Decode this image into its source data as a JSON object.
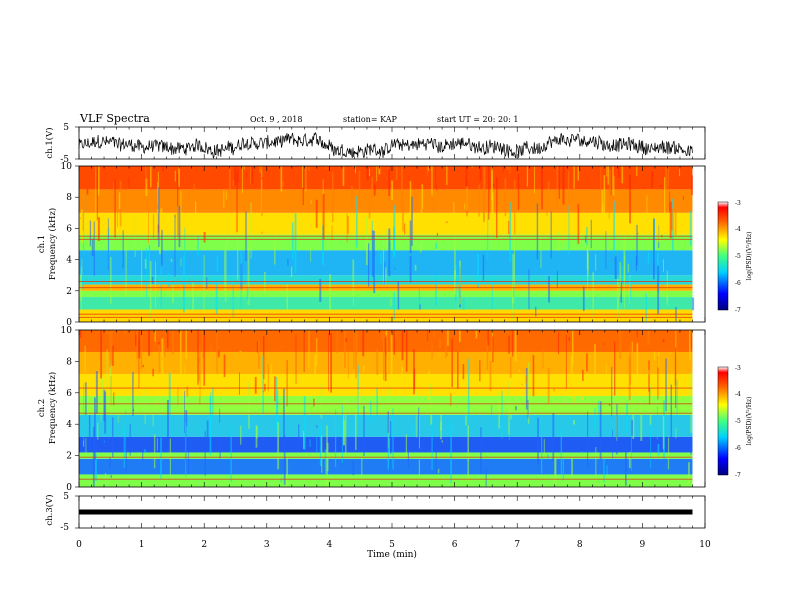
{
  "header": {
    "title": "VLF Spectra",
    "date": "Oct. 9 , 2018",
    "station": "station= KAP",
    "start_ut": "start UT =  20: 20: 1"
  },
  "chart_data": [
    {
      "id": "ch1-waveform",
      "type": "line",
      "ylabel": "ch.1(V)",
      "ylim": [
        -5,
        5
      ],
      "yticks": [
        "5",
        "-5"
      ],
      "xlim": [
        0,
        10
      ],
      "color": "#000000",
      "x_range": [
        0,
        9.8
      ],
      "level": -1
    },
    {
      "id": "ch1-spectrogram",
      "type": "heatmap",
      "ylabel": "ch.1 Frequency (kHz)",
      "ylabel_line1": "ch.1",
      "ylabel_line2": "Frequency  (kHz)",
      "ylim": [
        0,
        10
      ],
      "yticks": [
        "0",
        "2",
        "4",
        "6",
        "8",
        "10"
      ],
      "xlim": [
        0,
        10
      ],
      "x_range": [
        0,
        9.8
      ],
      "bands": [
        {
          "from": 0,
          "to": 0.8,
          "color": "#ffd800"
        },
        {
          "from": 0.8,
          "to": 1.6,
          "color": "#3fe9a8"
        },
        {
          "from": 1.6,
          "to": 2.0,
          "color": "#7fff4a"
        },
        {
          "from": 2.0,
          "to": 2.4,
          "color": "#ffb000"
        },
        {
          "from": 2.4,
          "to": 3.0,
          "color": "#28d8d8"
        },
        {
          "from": 3.0,
          "to": 4.6,
          "color": "#1fb4f4"
        },
        {
          "from": 4.6,
          "to": 5.6,
          "color": "#7fff4a"
        },
        {
          "from": 5.6,
          "to": 7.0,
          "color": "#ffe000"
        },
        {
          "from": 7.0,
          "to": 8.5,
          "color": "#ff8a00"
        },
        {
          "from": 8.5,
          "to": 10.0,
          "color": "#ff4a00"
        }
      ],
      "lines_khz": [
        0.3,
        0.5,
        2.2,
        2.6,
        5.3,
        5.5
      ],
      "colorbar": {
        "label": "log(PSD)(V²/Hz)",
        "ticks": [
          "-3",
          "-4",
          "-5",
          "-6",
          "-7"
        ],
        "range": [
          -7,
          -3
        ]
      }
    },
    {
      "id": "ch2-spectrogram",
      "type": "heatmap",
      "ylabel": "ch.2 Frequency (kHz)",
      "ylabel_line1": "ch.2",
      "ylabel_line2": "Frequency  (kHz)",
      "ylim": [
        0,
        10
      ],
      "yticks": [
        "0",
        "2",
        "4",
        "6",
        "8",
        "10"
      ],
      "xlim": [
        0,
        10
      ],
      "x_range": [
        0,
        9.8
      ],
      "bands": [
        {
          "from": 0,
          "to": 0.8,
          "color": "#7fff4a"
        },
        {
          "from": 0.8,
          "to": 1.8,
          "color": "#1f7cf4"
        },
        {
          "from": 1.8,
          "to": 2.2,
          "color": "#7fff4a"
        },
        {
          "from": 2.2,
          "to": 3.2,
          "color": "#1f5cf4"
        },
        {
          "from": 3.2,
          "to": 4.6,
          "color": "#28c8e8"
        },
        {
          "from": 4.6,
          "to": 5.8,
          "color": "#8fff40"
        },
        {
          "from": 5.8,
          "to": 7.2,
          "color": "#ffe000"
        },
        {
          "from": 7.2,
          "to": 8.6,
          "color": "#ffb000"
        },
        {
          "from": 8.6,
          "to": 10.0,
          "color": "#ff6a00"
        }
      ],
      "lines_khz": [
        0.5,
        1.9,
        4.7,
        5.3,
        6.3
      ],
      "colorbar": {
        "label": "log(PSD)(V²/Hz)",
        "ticks": [
          "-3",
          "-4",
          "-5",
          "-6",
          "-7"
        ],
        "range": [
          -7,
          -3
        ]
      }
    },
    {
      "id": "ch3-waveform",
      "type": "line",
      "ylabel": "ch.3(V)",
      "ylim": [
        -5,
        5
      ],
      "yticks": [
        "5",
        "-5"
      ],
      "xlim": [
        0,
        10
      ],
      "color": "#000000",
      "x_range": [
        0,
        9.8
      ],
      "level": 0
    }
  ],
  "x_axis": {
    "label": "Time  (min)",
    "ticks": [
      "0",
      "1",
      "2",
      "3",
      "4",
      "5",
      "6",
      "7",
      "8",
      "9",
      "10"
    ]
  }
}
